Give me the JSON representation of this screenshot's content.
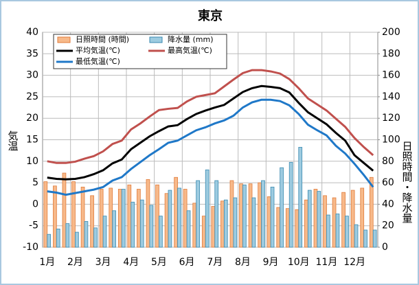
{
  "chart_data": {
    "type": "combo",
    "title": "東京",
    "categories": [
      "1月",
      null,
      null,
      "2月",
      null,
      null,
      "3月",
      null,
      null,
      "4月",
      null,
      null,
      "5月",
      null,
      null,
      "6月",
      null,
      null,
      "7月",
      null,
      null,
      "8月",
      null,
      null,
      "9月",
      null,
      null,
      "10月",
      null,
      null,
      "11月",
      null,
      null,
      "12月",
      null,
      null
    ],
    "y_label": "気温",
    "y2_label": "日照時間・降水量",
    "ylim": [
      -10,
      40
    ],
    "yticks": [
      -10,
      -5,
      0,
      5,
      10,
      15,
      20,
      25,
      30,
      35,
      40
    ],
    "y2lim": [
      0,
      200
    ],
    "y2ticks": [
      0,
      20,
      40,
      60,
      80,
      100,
      120,
      140,
      160,
      180,
      200
    ],
    "grid": true,
    "series": [
      {
        "name": "日照時間 (時間)",
        "type": "bar",
        "axis": "y2",
        "color": "#f7b98a",
        "edge": "#e07b3a",
        "values": [
          61,
          57,
          69,
          61,
          56,
          48,
          54,
          55,
          54,
          58,
          54,
          63,
          58,
          50,
          65,
          54,
          41,
          29,
          38,
          43,
          62,
          59,
          59,
          60,
          47,
          37,
          36,
          35,
          44,
          54,
          48,
          46,
          51,
          53,
          55,
          65
        ]
      },
      {
        "name": "降水量 (mm)",
        "type": "bar",
        "axis": "y2",
        "color": "#9dcbe0",
        "edge": "#3a8ab0",
        "values": [
          12,
          17,
          22,
          14,
          24,
          18,
          29,
          34,
          54,
          42,
          44,
          39,
          29,
          53,
          55,
          34,
          62,
          72,
          62,
          44,
          46,
          58,
          46,
          62,
          56,
          74,
          79,
          93,
          53,
          52,
          30,
          31,
          29,
          21,
          16,
          16
        ]
      },
      {
        "name": "平均気温(℃)",
        "type": "line",
        "color": "#000000",
        "values": [
          6.2,
          5.9,
          5.8,
          5.9,
          6.3,
          7.0,
          7.9,
          9.5,
          10.4,
          12.8,
          14.3,
          15.8,
          17.0,
          18.1,
          18.4,
          19.8,
          21.0,
          21.8,
          22.5,
          23.1,
          24.6,
          26.1,
          27.0,
          27.5,
          27.3,
          27.0,
          26.0,
          23.6,
          21.4,
          20.0,
          18.6,
          16.6,
          14.8,
          11.4,
          9.6,
          7.8
        ]
      },
      {
        "name": "最高気温(℃)",
        "type": "line",
        "color": "#c0504d",
        "values": [
          10.0,
          9.6,
          9.6,
          9.9,
          10.6,
          11.2,
          12.3,
          14.0,
          14.8,
          17.4,
          18.8,
          20.4,
          21.9,
          22.2,
          22.4,
          23.9,
          25.0,
          25.4,
          25.8,
          27.4,
          29.0,
          30.5,
          31.2,
          31.2,
          30.9,
          30.4,
          29.1,
          27.0,
          24.6,
          23.2,
          21.8,
          19.9,
          18.0,
          15.4,
          13.3,
          11.4
        ]
      },
      {
        "name": "最低気温(℃)",
        "type": "line",
        "color": "#1f78c8",
        "values": [
          3.0,
          2.7,
          2.2,
          2.6,
          3.0,
          3.4,
          4.0,
          5.5,
          6.3,
          8.2,
          9.8,
          11.4,
          12.8,
          14.3,
          14.8,
          16.0,
          17.2,
          17.9,
          18.8,
          19.5,
          20.6,
          22.5,
          23.7,
          24.3,
          24.3,
          24.0,
          23.0,
          21.0,
          18.5,
          17.2,
          16.0,
          13.6,
          11.8,
          9.4,
          6.8,
          4.0
        ]
      }
    ]
  }
}
